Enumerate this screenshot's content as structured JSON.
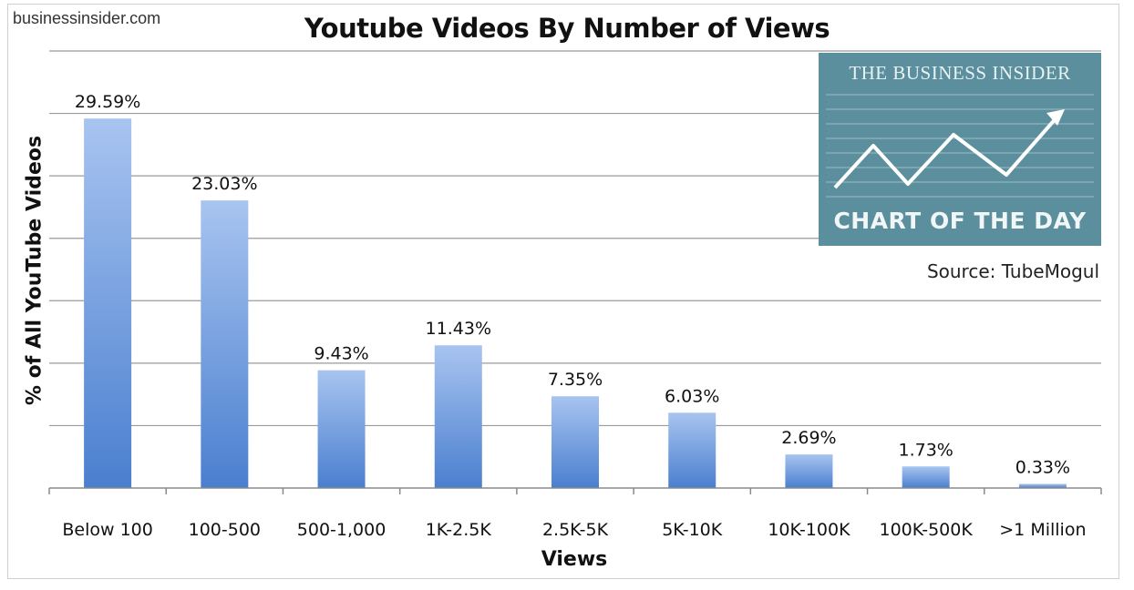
{
  "header": {
    "site": "businessinsider.com"
  },
  "logo": {
    "top_text": "THE BUSINESS INSIDER",
    "bottom_text": "CHART OF THE DAY",
    "bg_color": "#5b8f9d"
  },
  "source_note": "Source: TubeMogul",
  "chart_data": {
    "type": "bar",
    "title": "Youtube Videos By Number of Views",
    "xlabel": "Views",
    "ylabel": "% of All YouTube Videos",
    "categories": [
      "Below 100",
      "100-500",
      "500-1,000",
      "1K-2.5K",
      "2.5K-5K",
      "5K-10K",
      "10K-100K",
      "100K-500K",
      ">1 Million"
    ],
    "values": [
      29.59,
      23.03,
      9.43,
      11.43,
      7.35,
      6.03,
      2.69,
      1.73,
      0.33
    ],
    "value_labels": [
      "29.59%",
      "23.03%",
      "9.43%",
      "11.43%",
      "7.35%",
      "6.03%",
      "2.69%",
      "1.73%",
      "0.33%"
    ],
    "ylim": [
      0,
      35
    ],
    "grid": true,
    "bar_color_top": "#a8c4f0",
    "bar_color_bottom": "#4a7fcf"
  }
}
